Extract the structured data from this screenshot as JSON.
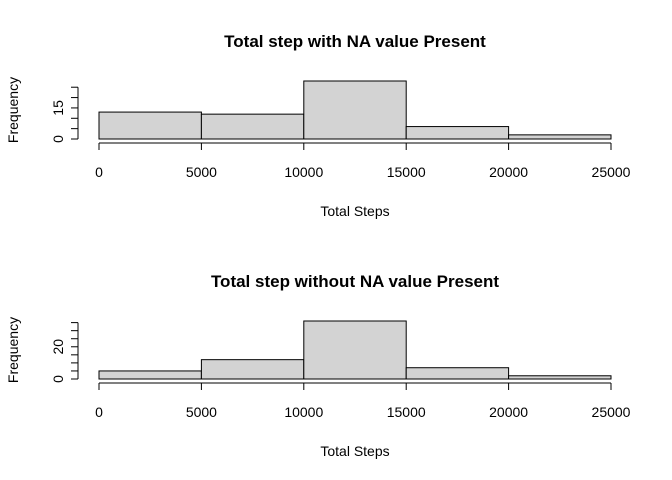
{
  "chart_data": [
    {
      "type": "bar",
      "title": "Total step with NA value Present",
      "xlabel": "Total Steps",
      "ylabel": "Frequency",
      "bins": [
        [
          0,
          5000
        ],
        [
          5000,
          10000
        ],
        [
          10000,
          15000
        ],
        [
          15000,
          20000
        ],
        [
          20000,
          25000
        ]
      ],
      "values": [
        13,
        12,
        28,
        6,
        2
      ],
      "xticks": [
        "0",
        "5000",
        "10000",
        "15000",
        "20000",
        "25000"
      ],
      "xtick_values": [
        0,
        5000,
        10000,
        15000,
        20000,
        25000
      ],
      "yticks": [
        "0",
        "15"
      ],
      "ytick_values": [
        0,
        15
      ],
      "yminor": [
        0,
        5,
        10,
        15,
        20,
        25
      ],
      "xlim": [
        0,
        25000
      ],
      "ylim": [
        0,
        28
      ],
      "grid": false
    },
    {
      "type": "bar",
      "title": "Total step without NA value Present",
      "xlabel": "Total Steps",
      "ylabel": "Frequency",
      "bins": [
        [
          0,
          5000
        ],
        [
          5000,
          10000
        ],
        [
          10000,
          15000
        ],
        [
          15000,
          20000
        ],
        [
          20000,
          25000
        ]
      ],
      "values": [
        5,
        12,
        36,
        7,
        2
      ],
      "xticks": [
        "0",
        "5000",
        "10000",
        "15000",
        "20000",
        "25000"
      ],
      "xtick_values": [
        0,
        5000,
        10000,
        15000,
        20000,
        25000
      ],
      "yticks": [
        "0",
        "20"
      ],
      "ytick_values": [
        0,
        20
      ],
      "yminor": [
        0,
        5,
        10,
        15,
        20,
        25,
        30,
        35
      ],
      "xlim": [
        0,
        25000
      ],
      "ylim": [
        0,
        36
      ],
      "grid": false
    }
  ]
}
